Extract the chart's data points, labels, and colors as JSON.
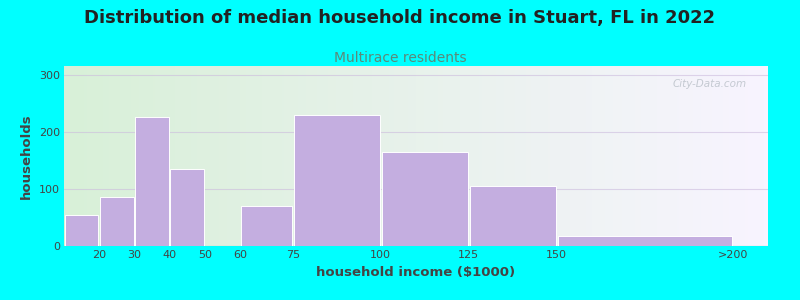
{
  "title": "Distribution of median household income in Stuart, FL in 2022",
  "subtitle": "Multirace residents",
  "xlabel": "household income ($1000)",
  "ylabel": "households",
  "background_color": "#00FFFF",
  "bar_color": "#c4aee0",
  "bar_edge_color": "#ffffff",
  "values": [
    55,
    85,
    225,
    135,
    0,
    70,
    230,
    165,
    105,
    18
  ],
  "bar_widths": [
    10,
    10,
    10,
    10,
    10,
    15,
    25,
    25,
    25,
    50
  ],
  "bar_lefts": [
    10,
    20,
    30,
    40,
    50,
    60,
    75,
    100,
    125,
    150
  ],
  "xtick_positions": [
    20,
    30,
    40,
    50,
    60,
    75,
    100,
    125,
    150,
    200
  ],
  "xtick_labels": [
    "20",
    "30",
    "40",
    "50",
    "60",
    "75",
    "100",
    "125",
    "150",
    ">200"
  ],
  "ytick_positions": [
    0,
    100,
    200,
    300
  ],
  "ytick_labels": [
    "0",
    "100",
    "200",
    "300"
  ],
  "ylim": [
    0,
    315
  ],
  "xlim": [
    10,
    210
  ],
  "title_fontsize": 13,
  "subtitle_fontsize": 10,
  "axis_label_fontsize": 9.5,
  "watermark_text": "City-Data.com",
  "title_color": "#222222",
  "subtitle_color": "#5a8a7a",
  "axis_label_color": "#444444",
  "tick_color": "#444444",
  "grid_color": "#ccbbdd",
  "grid_alpha": 0.6,
  "plot_bg_left_color": "#d8f0d8",
  "plot_bg_right_color": "#f8f4ff"
}
